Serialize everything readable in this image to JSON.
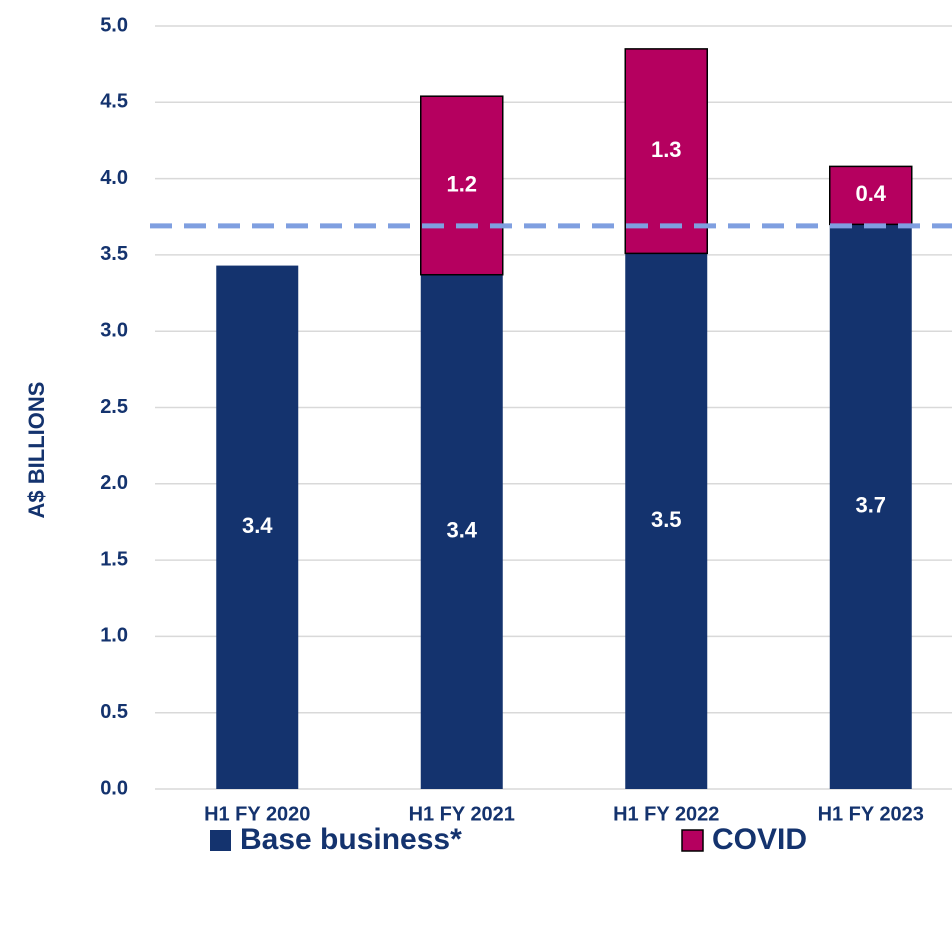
{
  "chart_data": {
    "type": "stacked_bar",
    "y_label": "A$ BILLIONS",
    "categories": [
      "H1 FY 2020",
      "H1 FY 2021",
      "H1 FY 2022",
      "H1 FY 2023"
    ],
    "series": [
      {
        "name": "Base business*",
        "color": "#14336e",
        "values": [
          3.43,
          3.37,
          3.51,
          3.7
        ],
        "value_labels": [
          "3.4",
          "3.4",
          "3.5",
          "3.7"
        ]
      },
      {
        "name": "COVID",
        "color": "#b5005f",
        "values": [
          null,
          1.17,
          1.34,
          0.38
        ],
        "value_labels": [
          null,
          "1.2",
          "1.3",
          "0.4"
        ]
      }
    ],
    "reference_line": {
      "value": 3.69,
      "color": "#7f9fe0"
    },
    "ylim": [
      0,
      5
    ],
    "yticks": [
      {
        "value": 0,
        "label": "0.0"
      },
      0.5,
      {
        "value": 1,
        "label": "1.0"
      },
      1.5,
      {
        "value": 2,
        "label": "2.0"
      },
      2.5,
      {
        "value": 3,
        "label": "3.0"
      },
      3.5,
      {
        "value": 4,
        "label": "4.0"
      },
      4.5,
      {
        "value": 5,
        "label": "5.0"
      }
    ],
    "grid": true
  }
}
